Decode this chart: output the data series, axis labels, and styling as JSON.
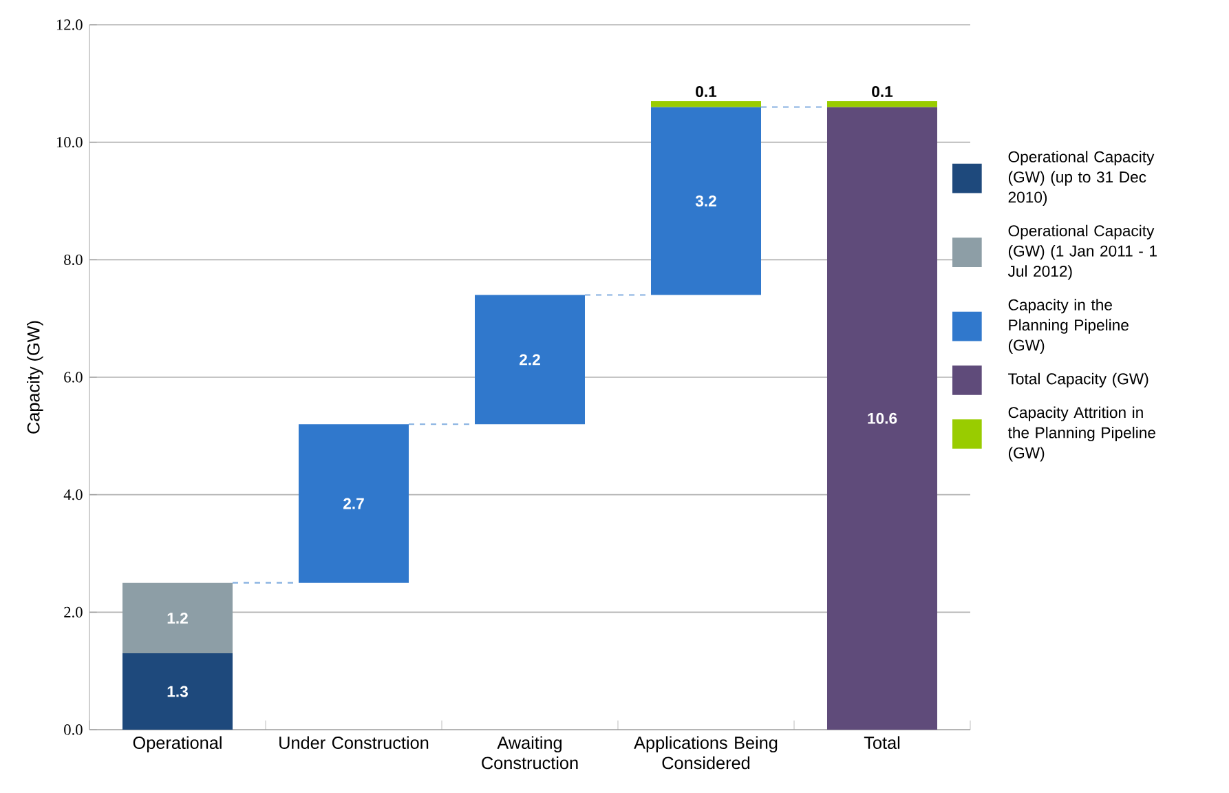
{
  "chart_data": {
    "type": "bar",
    "stacked": true,
    "ylabel": "Capacity (GW)",
    "categories": [
      "Operational",
      "Under Construction",
      "Awaiting Construction",
      "Applications Being Considered",
      "Total"
    ],
    "series": [
      {
        "name": "Operational Capacity (GW) (up to 31 Dec 2010)",
        "color": "#1e497c",
        "values": [
          1.3,
          null,
          null,
          null,
          null
        ]
      },
      {
        "name": "Operational Capacity (GW) (1 Jan 2011 - 1 Jul 2012)",
        "color": "#8d9ea6",
        "values": [
          1.2,
          null,
          null,
          null,
          null
        ]
      },
      {
        "name": "Capacity in the Planning Pipeline (GW)",
        "color": "#3078cc",
        "values": [
          null,
          2.7,
          2.2,
          3.2,
          null
        ],
        "base": [
          null,
          2.5,
          5.2,
          7.4,
          null
        ]
      },
      {
        "name": "Total Capacity (GW)",
        "color": "#5f4b7a",
        "values": [
          null,
          null,
          null,
          null,
          10.6
        ]
      },
      {
        "name": "Capacity Attrition in the Planning Pipeline (GW)",
        "color": "#99cc00",
        "values": [
          null,
          null,
          null,
          0.1,
          0.1
        ],
        "base": [
          null,
          null,
          null,
          10.6,
          10.6
        ]
      }
    ],
    "ylim": [
      0,
      12
    ],
    "yticks": [
      {
        "value": 0,
        "label": "0.0"
      },
      {
        "value": 2,
        "label": "2.0"
      },
      {
        "value": 4,
        "label": "4.0"
      },
      {
        "value": 6,
        "label": "6.0"
      },
      {
        "value": 8,
        "label": "8.0"
      },
      {
        "value": 10,
        "label": "10.0"
      },
      {
        "value": 12,
        "label": "12.0"
      }
    ],
    "grid": "y",
    "data_labels": true,
    "legend": "right"
  }
}
